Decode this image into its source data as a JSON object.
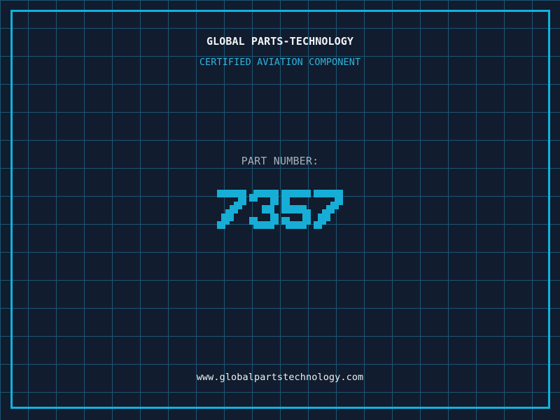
{
  "header": {
    "title": "GLOBAL PARTS-TECHNOLOGY",
    "subtitle": "CERTIFIED AVIATION COMPONENT"
  },
  "part": {
    "label": "PART NUMBER:",
    "number": "7357"
  },
  "footer": {
    "website": "www.globalpartstechnology.com"
  },
  "colors": {
    "background": "#111c2e",
    "grid_line": "#1d5674",
    "frame": "#10b2de",
    "title": "#f2f5f7",
    "subtitle": "#2fb4dc",
    "part_label": "#a6b0ba",
    "part_number": "#16aed6",
    "website": "#edf0f2"
  }
}
